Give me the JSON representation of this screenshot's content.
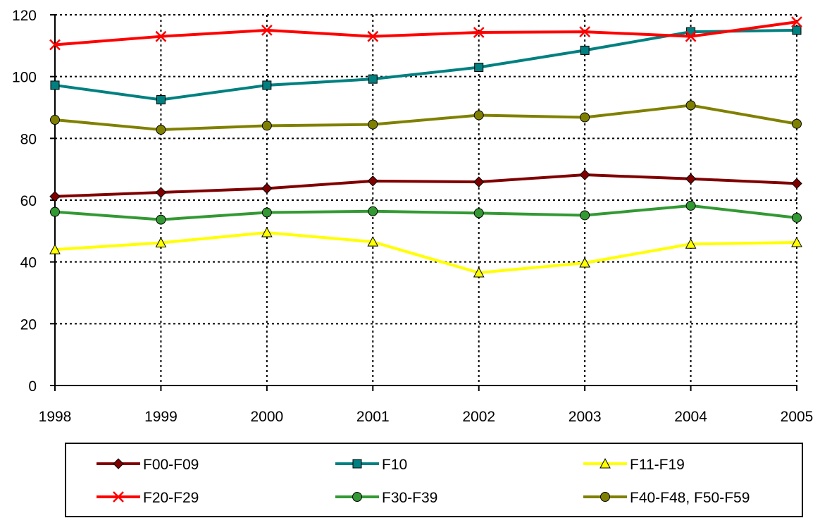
{
  "chart_data": {
    "type": "line",
    "title": "",
    "xlabel": "",
    "ylabel": "",
    "x": [
      "1998",
      "1999",
      "2000",
      "2001",
      "2002",
      "2003",
      "2004",
      "2005"
    ],
    "ylim": [
      0,
      120
    ],
    "yticks": [
      0,
      20,
      40,
      60,
      80,
      100,
      120
    ],
    "grid": true,
    "legend_position": "bottom",
    "series": [
      {
        "name": "F00-F09",
        "color": "#800000",
        "marker": "diamond",
        "values": [
          61.2,
          62.5,
          63.8,
          66.2,
          65.9,
          68.2,
          66.9,
          65.4
        ]
      },
      {
        "name": "F10",
        "color": "#008080",
        "marker": "square",
        "values": [
          97.2,
          92.5,
          97.2,
          99.2,
          103.0,
          108.5,
          114.5,
          115.0
        ]
      },
      {
        "name": "F11-F19",
        "color": "#ffff00",
        "marker": "triangle",
        "values": [
          44.0,
          46.2,
          49.5,
          46.5,
          36.5,
          39.7,
          45.8,
          46.3
        ]
      },
      {
        "name": "F20-F29",
        "color": "#ff0000",
        "marker": "x",
        "values": [
          110.3,
          113.0,
          115.0,
          113.0,
          114.3,
          114.5,
          113.0,
          117.7
        ]
      },
      {
        "name": "F30-F39",
        "color": "#339933",
        "marker": "circle",
        "values": [
          56.2,
          53.7,
          56.0,
          56.4,
          55.8,
          55.1,
          58.2,
          54.3
        ]
      },
      {
        "name": "F40-F48, F50-F59",
        "color": "#808000",
        "marker": "circle",
        "values": [
          86.0,
          82.8,
          84.1,
          84.5,
          87.5,
          86.8,
          90.7,
          84.7
        ]
      }
    ]
  }
}
